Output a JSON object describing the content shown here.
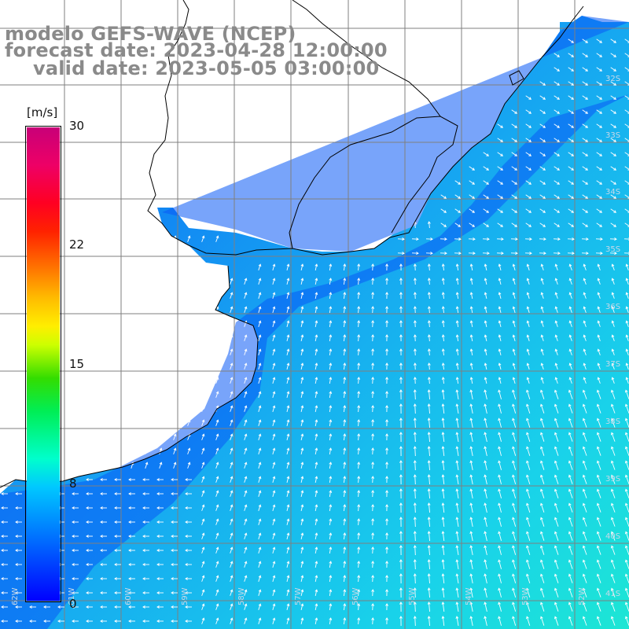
{
  "title": {
    "line1": "modelo GEFS-WAVE (NCEP)",
    "line2": "forecast date: 2023-04-28 12:00:00",
    "line3": "valid date: 2023-05-05 03:00:00"
  },
  "colorbar": {
    "unit": "[m/s]",
    "ticks": [
      "30",
      "22",
      "15",
      "8",
      "0"
    ],
    "tick_values": [
      30,
      22,
      15,
      8,
      0
    ],
    "min": 0,
    "max": 30,
    "colors": [
      "#0000ff",
      "#0066ff",
      "#00c8ff",
      "#00ffcc",
      "#00ee55",
      "#33dd00",
      "#ccff00",
      "#ffee00",
      "#ffbb00",
      "#ff7700",
      "#ff2200",
      "#ff0022",
      "#ee0066",
      "#c80078"
    ]
  },
  "map": {
    "lat_labels": [
      "32S",
      "33S",
      "34S",
      "35S",
      "36S",
      "37S",
      "38S",
      "39S",
      "40S",
      "41S"
    ],
    "lon_labels": [
      "62W",
      "61W",
      "60W",
      "59W",
      "58W",
      "57W",
      "56W",
      "55W",
      "54W",
      "53W",
      "52W"
    ],
    "ocean_color": "#1aa0f0",
    "land_color": "#ffffff",
    "grid_color": "#7f7f7f",
    "arrow_color": "#ffffff",
    "coast_color": "#000000"
  }
}
